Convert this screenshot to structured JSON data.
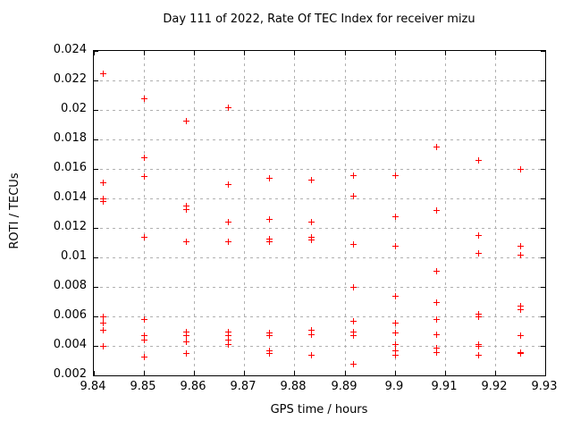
{
  "chart_data": {
    "type": "scatter",
    "title": "Day 111 of 2022, Rate Of TEC Index for receiver mizu",
    "xlabel": "GPS time / hours",
    "ylabel": "ROTI / TECUs",
    "xlim": [
      9.84,
      9.93
    ],
    "ylim": [
      0.002,
      0.024
    ],
    "grid": true,
    "legend": "none",
    "marker": "plus",
    "marker_color": "#ff0000",
    "grid_color": "#b0b0b0",
    "border_color": "#000000",
    "x_tick_values": [
      9.84,
      9.85,
      9.86,
      9.87,
      9.88,
      9.89,
      9.9,
      9.91,
      9.92,
      9.93
    ],
    "x_tick_labels": [
      "9.84",
      "9.85",
      "9.86",
      "9.87",
      "9.88",
      "9.89",
      "9.9",
      "9.91",
      "9.92",
      "9.93"
    ],
    "y_tick_values": [
      0.002,
      0.004,
      0.006,
      0.008,
      0.01,
      0.012,
      0.014,
      0.016,
      0.018,
      0.02,
      0.022,
      0.024
    ],
    "y_tick_labels": [
      "0.002",
      "0.004",
      "0.006",
      "0.008",
      "0.01",
      "0.012",
      "0.014",
      "0.016",
      "0.018",
      "0.02",
      "0.022",
      "0.024"
    ],
    "series": [
      {
        "name": "ROTI",
        "points": [
          [
            9.8417,
            0.0225
          ],
          [
            9.8417,
            0.0151
          ],
          [
            9.8417,
            0.014
          ],
          [
            9.8417,
            0.0138
          ],
          [
            9.8417,
            0.006
          ],
          [
            9.8417,
            0.0056
          ],
          [
            9.8417,
            0.0051
          ],
          [
            9.8417,
            0.004
          ],
          [
            9.85,
            0.0208
          ],
          [
            9.85,
            0.0168
          ],
          [
            9.85,
            0.0155
          ],
          [
            9.85,
            0.0114
          ],
          [
            9.85,
            0.0058
          ],
          [
            9.85,
            0.0047
          ],
          [
            9.85,
            0.0044
          ],
          [
            9.85,
            0.0033
          ],
          [
            9.8583,
            0.0193
          ],
          [
            9.8583,
            0.0135
          ],
          [
            9.8583,
            0.0133
          ],
          [
            9.8583,
            0.0111
          ],
          [
            9.8583,
            0.005
          ],
          [
            9.8583,
            0.0047
          ],
          [
            9.8583,
            0.0043
          ],
          [
            9.8583,
            0.0035
          ],
          [
            9.8667,
            0.0202
          ],
          [
            9.8667,
            0.015
          ],
          [
            9.8667,
            0.0124
          ],
          [
            9.8667,
            0.0111
          ],
          [
            9.8667,
            0.005
          ],
          [
            9.8667,
            0.0047
          ],
          [
            9.8667,
            0.0044
          ],
          [
            9.8667,
            0.0041
          ],
          [
            9.875,
            0.0154
          ],
          [
            9.875,
            0.0126
          ],
          [
            9.875,
            0.0113
          ],
          [
            9.875,
            0.0111
          ],
          [
            9.875,
            0.0049
          ],
          [
            9.875,
            0.0047
          ],
          [
            9.875,
            0.0037
          ],
          [
            9.875,
            0.0035
          ],
          [
            9.8833,
            0.0153
          ],
          [
            9.8833,
            0.0124
          ],
          [
            9.8833,
            0.0114
          ],
          [
            9.8833,
            0.0112
          ],
          [
            9.8833,
            0.0051
          ],
          [
            9.8833,
            0.0048
          ],
          [
            9.8833,
            0.0034
          ],
          [
            9.8917,
            0.0156
          ],
          [
            9.8917,
            0.0142
          ],
          [
            9.8917,
            0.0109
          ],
          [
            9.8917,
            0.008
          ],
          [
            9.8917,
            0.0057
          ],
          [
            9.8917,
            0.005
          ],
          [
            9.8917,
            0.0047
          ],
          [
            9.8917,
            0.0028
          ],
          [
            9.9,
            0.0156
          ],
          [
            9.9,
            0.0128
          ],
          [
            9.9,
            0.0108
          ],
          [
            9.9,
            0.0074
          ],
          [
            9.9,
            0.0056
          ],
          [
            9.9,
            0.0049
          ],
          [
            9.9,
            0.0041
          ],
          [
            9.9,
            0.0037
          ],
          [
            9.9,
            0.0034
          ],
          [
            9.9083,
            0.0175
          ],
          [
            9.9083,
            0.0132
          ],
          [
            9.9083,
            0.0091
          ],
          [
            9.9083,
            0.007
          ],
          [
            9.9083,
            0.0058
          ],
          [
            9.9083,
            0.0048
          ],
          [
            9.9083,
            0.0039
          ],
          [
            9.9083,
            0.0036
          ],
          [
            9.9167,
            0.0166
          ],
          [
            9.9167,
            0.0115
          ],
          [
            9.9167,
            0.0103
          ],
          [
            9.9167,
            0.0062
          ],
          [
            9.9167,
            0.006
          ],
          [
            9.9167,
            0.0041
          ],
          [
            9.9167,
            0.004
          ],
          [
            9.9167,
            0.0034
          ],
          [
            9.925,
            0.016
          ],
          [
            9.925,
            0.0108
          ],
          [
            9.925,
            0.0102
          ],
          [
            9.925,
            0.0067
          ],
          [
            9.925,
            0.0065
          ],
          [
            9.925,
            0.0047
          ],
          [
            9.925,
            0.0036
          ],
          [
            9.925,
            0.0035
          ]
        ]
      }
    ]
  }
}
